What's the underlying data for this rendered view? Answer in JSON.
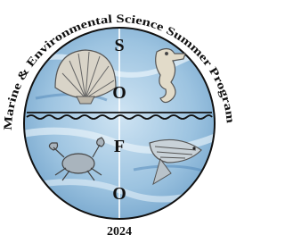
{
  "logo": {
    "arc_text": "Marine & Environmental Science Summer Program",
    "letters": [
      "S",
      "O",
      "F",
      "O"
    ],
    "year": "2024"
  }
}
